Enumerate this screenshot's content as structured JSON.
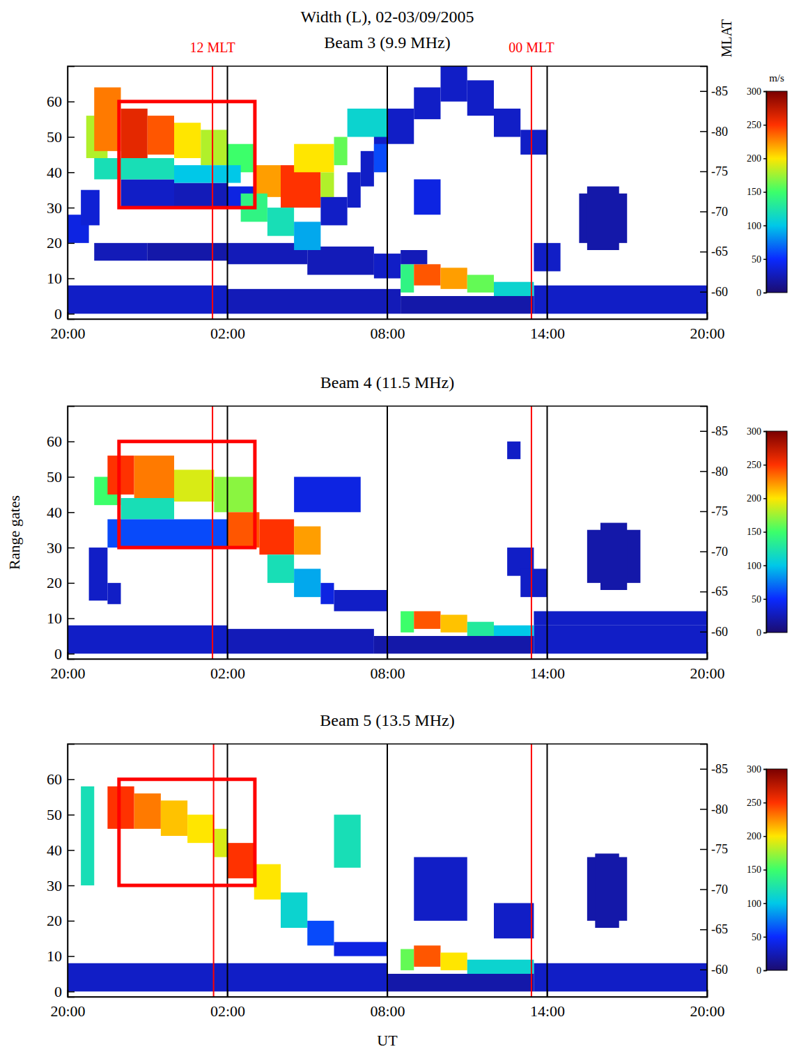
{
  "title": "Width (L), 02-03/09/2005",
  "chart_data": [
    {
      "type": "heatmap",
      "title": "Beam 3 (9.9 MHz)",
      "y2label": "MLAT",
      "xlim": [
        0,
        24
      ],
      "xticks": [
        {
          "value": 0,
          "label": "20:00"
        },
        {
          "value": 6,
          "label": "02:00"
        },
        {
          "value": 12,
          "label": "08:00"
        },
        {
          "value": 18,
          "label": "14:00"
        },
        {
          "value": 24,
          "label": "20:00"
        }
      ],
      "ylim": [
        -1.5,
        70
      ],
      "yticks": [
        0,
        10,
        20,
        30,
        40,
        50,
        60
      ],
      "y2lim": [
        -56.6,
        -88.1
      ],
      "y2ticks": [
        -85,
        -80,
        -75,
        -70,
        -65,
        -60
      ],
      "colorbar": {
        "range": [
          0,
          300
        ],
        "ticks": [
          0,
          50,
          100,
          150,
          200,
          250,
          300
        ],
        "label": "m/s",
        "colors": [
          "#1b0c70",
          "#0a2aff",
          "#00c8e8",
          "#3cff6a",
          "#ffe600",
          "#ff3200",
          "#7a0000"
        ]
      },
      "vlines": [
        {
          "x": 5.44,
          "color": "red",
          "label": "12 MLT"
        },
        {
          "x": 6,
          "color": "black"
        },
        {
          "x": 12,
          "color": "black"
        },
        {
          "x": 17.41,
          "color": "red",
          "label": "00 MLT"
        },
        {
          "x": 18,
          "color": "black"
        }
      ],
      "box": {
        "xlim": [
          1.93,
          7.03
        ],
        "ylim": [
          30,
          60
        ],
        "color": "red"
      },
      "cells": [
        [
          0,
          6,
          0,
          8,
          30
        ],
        [
          6,
          12.5,
          0,
          7,
          25
        ],
        [
          12.5,
          17.5,
          0,
          5,
          20
        ],
        [
          17.5,
          24,
          0,
          8,
          30
        ],
        [
          0,
          0.8,
          20,
          28,
          40
        ],
        [
          0.5,
          1.2,
          25,
          35,
          35
        ],
        [
          2,
          4,
          30,
          38,
          30
        ],
        [
          4,
          6,
          30,
          37,
          25
        ],
        [
          6,
          7,
          30,
          36,
          40
        ],
        [
          1,
          3,
          15,
          20,
          25
        ],
        [
          3,
          6,
          15,
          20,
          20
        ],
        [
          6,
          9,
          14,
          20,
          25
        ],
        [
          9,
          11.5,
          11,
          19,
          25
        ],
        [
          11.5,
          12.5,
          10,
          17,
          30
        ],
        [
          0.7,
          1.5,
          44,
          56,
          180
        ],
        [
          1,
          2,
          46,
          64,
          230
        ],
        [
          2,
          3,
          44,
          58,
          260
        ],
        [
          3,
          4,
          45,
          56,
          240
        ],
        [
          4,
          5,
          44,
          54,
          200
        ],
        [
          5,
          6,
          42,
          52,
          180
        ],
        [
          6,
          7,
          40,
          48,
          150
        ],
        [
          1,
          4,
          38,
          44,
          120
        ],
        [
          4,
          6.5,
          37,
          42,
          100
        ],
        [
          7,
          8,
          33,
          42,
          220
        ],
        [
          8,
          9.5,
          30,
          42,
          250
        ],
        [
          9.5,
          10,
          32,
          40,
          180
        ],
        [
          6.5,
          7.5,
          26,
          34,
          140
        ],
        [
          7.5,
          8.5,
          22,
          30,
          120
        ],
        [
          8.5,
          9.5,
          18,
          26,
          90
        ],
        [
          8.5,
          10,
          40,
          48,
          200
        ],
        [
          10,
          10.5,
          42,
          50,
          160
        ],
        [
          9.5,
          10.5,
          25,
          33,
          30
        ],
        [
          10.5,
          11,
          30,
          40,
          30
        ],
        [
          11,
          11.5,
          36,
          46,
          30
        ],
        [
          11.5,
          12,
          42,
          52,
          30
        ],
        [
          12,
          13,
          48,
          58,
          30
        ],
        [
          13,
          14,
          55,
          64,
          30
        ],
        [
          14,
          15,
          60,
          70,
          30
        ],
        [
          15,
          16,
          56,
          66,
          30
        ],
        [
          16,
          17,
          50,
          58,
          30
        ],
        [
          17,
          18,
          45,
          52,
          30
        ],
        [
          10.5,
          12,
          50,
          58,
          110
        ],
        [
          11.5,
          12,
          40,
          48,
          60
        ],
        [
          12.5,
          13,
          6,
          14,
          140
        ],
        [
          13,
          14,
          8,
          14,
          240
        ],
        [
          14,
          15,
          7,
          13,
          220
        ],
        [
          15,
          16,
          6,
          11,
          160
        ],
        [
          16,
          17.5,
          5,
          9,
          110
        ],
        [
          12.5,
          13.5,
          14,
          18,
          25
        ],
        [
          13,
          14,
          28,
          38,
          40
        ],
        [
          17.5,
          18.5,
          12,
          20,
          30
        ],
        [
          19.2,
          21,
          20,
          34,
          20
        ],
        [
          19.5,
          20.7,
          18,
          36,
          20
        ]
      ]
    },
    {
      "type": "heatmap",
      "title": "Beam 4 (11.5 MHz)",
      "ylabel": "Range gates",
      "xlim": [
        0,
        24
      ],
      "xticks": [
        {
          "value": 0,
          "label": "20:00"
        },
        {
          "value": 6,
          "label": "02:00"
        },
        {
          "value": 12,
          "label": "08:00"
        },
        {
          "value": 18,
          "label": "14:00"
        },
        {
          "value": 24,
          "label": "20:00"
        }
      ],
      "ylim": [
        -1.5,
        70
      ],
      "yticks": [
        0,
        10,
        20,
        30,
        40,
        50,
        60
      ],
      "y2lim": [
        -56.6,
        -88.1
      ],
      "y2ticks": [
        -85,
        -80,
        -75,
        -70,
        -65,
        -60
      ],
      "colorbar": {
        "range": [
          0,
          300
        ],
        "ticks": [
          0,
          50,
          100,
          150,
          200,
          250,
          300
        ],
        "colors": [
          "#1b0c70",
          "#0a2aff",
          "#00c8e8",
          "#3cff6a",
          "#ffe600",
          "#ff3200",
          "#7a0000"
        ]
      },
      "vlines": [
        {
          "x": 5.44,
          "color": "red"
        },
        {
          "x": 6,
          "color": "black"
        },
        {
          "x": 12,
          "color": "black"
        },
        {
          "x": 17.41,
          "color": "red"
        },
        {
          "x": 18,
          "color": "black"
        }
      ],
      "box": {
        "xlim": [
          1.93,
          7.03
        ],
        "ylim": [
          30,
          60
        ],
        "color": "red"
      },
      "cells": [
        [
          0,
          6,
          0,
          8,
          30
        ],
        [
          6,
          11.5,
          0,
          7,
          25
        ],
        [
          11.5,
          17.5,
          0,
          5,
          20
        ],
        [
          17.5,
          24,
          0,
          8,
          30
        ],
        [
          0.8,
          1.5,
          15,
          30,
          30
        ],
        [
          1.5,
          2,
          14,
          20,
          30
        ],
        [
          1,
          2,
          42,
          50,
          150
        ],
        [
          1.5,
          2.5,
          45,
          56,
          250
        ],
        [
          2.5,
          4,
          44,
          56,
          230
        ],
        [
          4,
          5.5,
          43,
          52,
          190
        ],
        [
          5.5,
          7,
          40,
          50,
          170
        ],
        [
          2,
          4,
          38,
          44,
          120
        ],
        [
          1.5,
          6,
          30,
          38,
          60
        ],
        [
          6,
          7.2,
          30,
          40,
          240
        ],
        [
          7.2,
          8.5,
          28,
          38,
          250
        ],
        [
          8.5,
          9.5,
          28,
          36,
          220
        ],
        [
          7.5,
          8.5,
          20,
          28,
          120
        ],
        [
          8.5,
          9.5,
          16,
          24,
          90
        ],
        [
          9.5,
          10,
          14,
          20,
          40
        ],
        [
          8.5,
          11,
          40,
          50,
          40
        ],
        [
          10,
          12,
          12,
          18,
          30
        ],
        [
          12.5,
          13,
          6,
          12,
          150
        ],
        [
          13,
          14,
          7,
          12,
          240
        ],
        [
          14,
          15,
          6,
          11,
          210
        ],
        [
          15,
          16,
          5,
          9,
          130
        ],
        [
          16,
          17.5,
          5,
          8,
          100
        ],
        [
          16.5,
          17,
          55,
          60,
          30
        ],
        [
          16.5,
          17.5,
          22,
          30,
          30
        ],
        [
          17,
          18,
          16,
          24,
          30
        ],
        [
          17.5,
          24,
          8,
          12,
          30
        ],
        [
          19.5,
          21.5,
          20,
          35,
          20
        ],
        [
          20,
          21,
          18,
          37,
          20
        ]
      ]
    },
    {
      "type": "heatmap",
      "title": "Beam 5 (13.5 MHz)",
      "xlabel": "UT",
      "xlim": [
        0,
        24
      ],
      "xticks": [
        {
          "value": 0,
          "label": "20:00"
        },
        {
          "value": 6,
          "label": "02:00"
        },
        {
          "value": 12,
          "label": "08:00"
        },
        {
          "value": 18,
          "label": "14:00"
        },
        {
          "value": 24,
          "label": "20:00"
        }
      ],
      "ylim": [
        -1.5,
        70
      ],
      "yticks": [
        0,
        10,
        20,
        30,
        40,
        50,
        60
      ],
      "y2lim": [
        -56.6,
        -88.1
      ],
      "y2ticks": [
        -85,
        -80,
        -75,
        -70,
        -65,
        -60
      ],
      "colorbar": {
        "range": [
          0,
          300
        ],
        "ticks": [
          0,
          50,
          100,
          150,
          200,
          250,
          300
        ],
        "colors": [
          "#1b0c70",
          "#0a2aff",
          "#00c8e8",
          "#3cff6a",
          "#ffe600",
          "#ff3200",
          "#7a0000"
        ]
      },
      "vlines": [
        {
          "x": 5.48,
          "color": "red"
        },
        {
          "x": 6,
          "color": "black"
        },
        {
          "x": 12,
          "color": "black"
        },
        {
          "x": 17.41,
          "color": "red"
        },
        {
          "x": 18,
          "color": "black"
        }
      ],
      "box": {
        "xlim": [
          1.93,
          7.03
        ],
        "ylim": [
          30,
          60
        ],
        "color": "red"
      },
      "cells": [
        [
          0,
          12,
          0,
          8,
          30
        ],
        [
          12,
          17.5,
          0,
          5,
          20
        ],
        [
          17.5,
          24,
          0,
          8,
          30
        ],
        [
          0.5,
          1,
          30,
          58,
          120
        ],
        [
          1.5,
          2.5,
          46,
          58,
          250
        ],
        [
          2.5,
          3.5,
          46,
          56,
          230
        ],
        [
          3.5,
          4.5,
          44,
          54,
          210
        ],
        [
          4.5,
          5.5,
          42,
          50,
          200
        ],
        [
          5.5,
          6,
          38,
          46,
          190
        ],
        [
          6,
          7,
          32,
          42,
          250
        ],
        [
          7,
          8,
          26,
          36,
          200
        ],
        [
          8,
          9,
          18,
          28,
          110
        ],
        [
          9,
          10,
          13,
          20,
          60
        ],
        [
          10,
          12,
          10,
          14,
          40
        ],
        [
          10,
          11,
          35,
          50,
          120
        ],
        [
          12.5,
          13,
          6,
          12,
          160
        ],
        [
          13,
          14,
          7,
          13,
          240
        ],
        [
          14,
          15,
          6,
          11,
          200
        ],
        [
          15,
          17.5,
          5,
          9,
          110
        ],
        [
          13,
          15,
          20,
          38,
          30
        ],
        [
          16,
          17.5,
          15,
          25,
          30
        ],
        [
          19.5,
          21,
          20,
          38,
          20
        ],
        [
          19.8,
          20.7,
          18,
          39,
          20
        ]
      ]
    }
  ]
}
